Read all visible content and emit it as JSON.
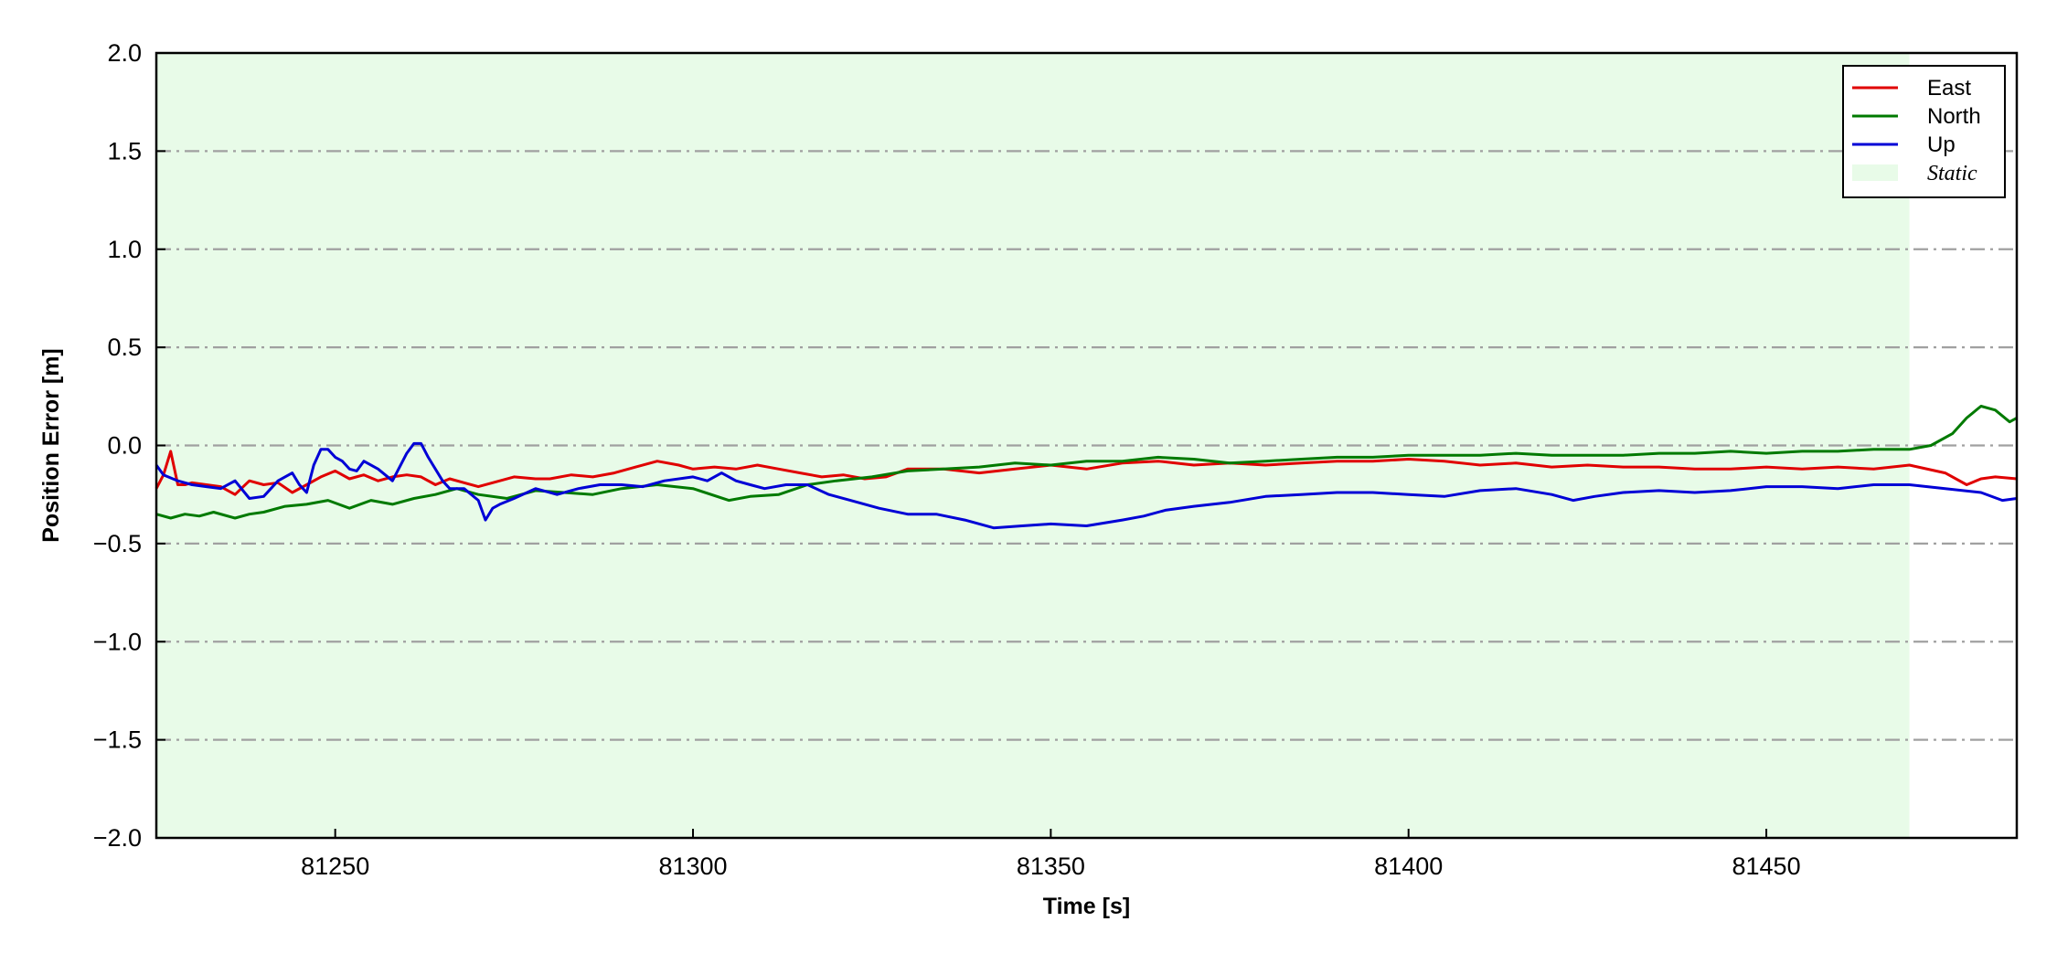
{
  "chart_data": {
    "type": "line",
    "title": "",
    "xlabel": "Time [s]",
    "ylabel": "Position Error [m]",
    "xlim": [
      81225,
      81485
    ],
    "ylim": [
      -2.0,
      2.0
    ],
    "x_ticks": [
      81250,
      81300,
      81350,
      81400,
      81450
    ],
    "x_tick_labels": [
      "81250",
      "81300",
      "81350",
      "81400",
      "81450"
    ],
    "y_ticks": [
      2.0,
      1.5,
      1.0,
      0.5,
      0.0,
      -0.5,
      -1.0,
      -1.5,
      -2.0
    ],
    "y_tick_labels": [
      "2.0",
      "1.5",
      "1.0",
      "0.5",
      "0.0",
      "−0.5",
      "−1.0",
      "−1.5",
      "−2.0"
    ],
    "grid": "horizontal dash-dot",
    "legend_position": "top-right",
    "shaded_region": {
      "label": "Static",
      "x_start": 81225,
      "x_end": 81470,
      "color": "#e8fbe8"
    },
    "series": [
      {
        "name": "East",
        "color": "#e00000",
        "x": [
          81225,
          81226,
          81227,
          81228,
          81229,
          81230,
          81232,
          81234,
          81236,
          81238,
          81240,
          81242,
          81244,
          81246,
          81248,
          81250,
          81252,
          81254,
          81256,
          81258,
          81260,
          81262,
          81264,
          81266,
          81268,
          81270,
          81272,
          81275,
          81278,
          81280,
          81283,
          81286,
          81289,
          81292,
          81295,
          81298,
          81300,
          81303,
          81306,
          81309,
          81312,
          81315,
          81318,
          81321,
          81324,
          81327,
          81330,
          81335,
          81340,
          81345,
          81350,
          81355,
          81360,
          81365,
          81370,
          81375,
          81380,
          81385,
          81390,
          81395,
          81400,
          81405,
          81410,
          81415,
          81420,
          81425,
          81430,
          81435,
          81440,
          81445,
          81450,
          81455,
          81460,
          81465,
          81470,
          81475,
          81478,
          81480,
          81482,
          81485
        ],
        "y": [
          -0.22,
          -0.15,
          -0.03,
          -0.2,
          -0.2,
          -0.19,
          -0.2,
          -0.21,
          -0.25,
          -0.18,
          -0.2,
          -0.19,
          -0.24,
          -0.2,
          -0.16,
          -0.13,
          -0.17,
          -0.15,
          -0.18,
          -0.16,
          -0.15,
          -0.16,
          -0.2,
          -0.17,
          -0.19,
          -0.21,
          -0.19,
          -0.16,
          -0.17,
          -0.17,
          -0.15,
          -0.16,
          -0.14,
          -0.11,
          -0.08,
          -0.1,
          -0.12,
          -0.11,
          -0.12,
          -0.1,
          -0.12,
          -0.14,
          -0.16,
          -0.15,
          -0.17,
          -0.16,
          -0.12,
          -0.12,
          -0.14,
          -0.12,
          -0.1,
          -0.12,
          -0.09,
          -0.08,
          -0.1,
          -0.09,
          -0.1,
          -0.09,
          -0.08,
          -0.08,
          -0.07,
          -0.08,
          -0.1,
          -0.09,
          -0.11,
          -0.1,
          -0.11,
          -0.11,
          -0.12,
          -0.12,
          -0.11,
          -0.12,
          -0.11,
          -0.12,
          -0.1,
          -0.14,
          -0.2,
          -0.17,
          -0.16,
          -0.17
        ]
      },
      {
        "name": "North",
        "color": "#007a00",
        "x": [
          81225,
          81227,
          81229,
          81231,
          81233,
          81236,
          81238,
          81240,
          81243,
          81246,
          81249,
          81252,
          81255,
          81258,
          81261,
          81264,
          81267,
          81270,
          81274,
          81278,
          81282,
          81286,
          81290,
          81295,
          81300,
          81305,
          81308,
          81312,
          81316,
          81320,
          81325,
          81330,
          81335,
          81340,
          81345,
          81350,
          81355,
          81360,
          81365,
          81370,
          81375,
          81380,
          81385,
          81390,
          81395,
          81400,
          81405,
          81410,
          81415,
          81420,
          81425,
          81430,
          81435,
          81440,
          81445,
          81450,
          81455,
          81460,
          81465,
          81470,
          81473,
          81476,
          81478,
          81480,
          81482,
          81484,
          81485
        ],
        "y": [
          -0.35,
          -0.37,
          -0.35,
          -0.36,
          -0.34,
          -0.37,
          -0.35,
          -0.34,
          -0.31,
          -0.3,
          -0.28,
          -0.32,
          -0.28,
          -0.3,
          -0.27,
          -0.25,
          -0.22,
          -0.25,
          -0.27,
          -0.23,
          -0.24,
          -0.25,
          -0.22,
          -0.2,
          -0.22,
          -0.28,
          -0.26,
          -0.25,
          -0.2,
          -0.18,
          -0.16,
          -0.13,
          -0.12,
          -0.11,
          -0.09,
          -0.1,
          -0.08,
          -0.08,
          -0.06,
          -0.07,
          -0.09,
          -0.08,
          -0.07,
          -0.06,
          -0.06,
          -0.05,
          -0.05,
          -0.05,
          -0.04,
          -0.05,
          -0.05,
          -0.05,
          -0.04,
          -0.04,
          -0.03,
          -0.04,
          -0.03,
          -0.03,
          -0.02,
          -0.02,
          0.0,
          0.06,
          0.14,
          0.2,
          0.18,
          0.12,
          0.14
        ]
      },
      {
        "name": "Up",
        "color": "#0000d6",
        "x": [
          81225,
          81226,
          81228,
          81230,
          81232,
          81234,
          81236,
          81238,
          81240,
          81242,
          81244,
          81245,
          81246,
          81247,
          81248,
          81249,
          81250,
          81251,
          81252,
          81253,
          81254,
          81256,
          81258,
          81260,
          81261,
          81262,
          81263,
          81265,
          81266,
          81268,
          81270,
          81271,
          81272,
          81273,
          81275,
          81278,
          81281,
          81284,
          81287,
          81290,
          81293,
          81296,
          81300,
          81302,
          81304,
          81306,
          81308,
          81310,
          81313,
          81316,
          81319,
          81322,
          81326,
          81330,
          81334,
          81338,
          81342,
          81346,
          81350,
          81355,
          81360,
          81363,
          81366,
          81370,
          81375,
          81380,
          81385,
          81390,
          81395,
          81400,
          81405,
          81410,
          81415,
          81420,
          81423,
          81426,
          81430,
          81435,
          81440,
          81445,
          81450,
          81455,
          81460,
          81465,
          81470,
          81475,
          81480,
          81483,
          81485
        ],
        "y": [
          -0.1,
          -0.15,
          -0.18,
          -0.2,
          -0.21,
          -0.22,
          -0.18,
          -0.27,
          -0.26,
          -0.18,
          -0.14,
          -0.2,
          -0.24,
          -0.1,
          -0.02,
          -0.02,
          -0.06,
          -0.08,
          -0.12,
          -0.13,
          -0.08,
          -0.12,
          -0.18,
          -0.04,
          0.01,
          0.01,
          -0.06,
          -0.18,
          -0.22,
          -0.22,
          -0.28,
          -0.38,
          -0.32,
          -0.3,
          -0.27,
          -0.22,
          -0.25,
          -0.22,
          -0.2,
          -0.2,
          -0.21,
          -0.18,
          -0.16,
          -0.18,
          -0.14,
          -0.18,
          -0.2,
          -0.22,
          -0.2,
          -0.2,
          -0.25,
          -0.28,
          -0.32,
          -0.35,
          -0.35,
          -0.38,
          -0.42,
          -0.41,
          -0.4,
          -0.41,
          -0.38,
          -0.36,
          -0.33,
          -0.31,
          -0.29,
          -0.26,
          -0.25,
          -0.24,
          -0.24,
          -0.25,
          -0.26,
          -0.23,
          -0.22,
          -0.25,
          -0.28,
          -0.26,
          -0.24,
          -0.23,
          -0.24,
          -0.23,
          -0.21,
          -0.21,
          -0.22,
          -0.2,
          -0.2,
          -0.22,
          -0.24,
          -0.28,
          -0.27
        ]
      }
    ]
  }
}
